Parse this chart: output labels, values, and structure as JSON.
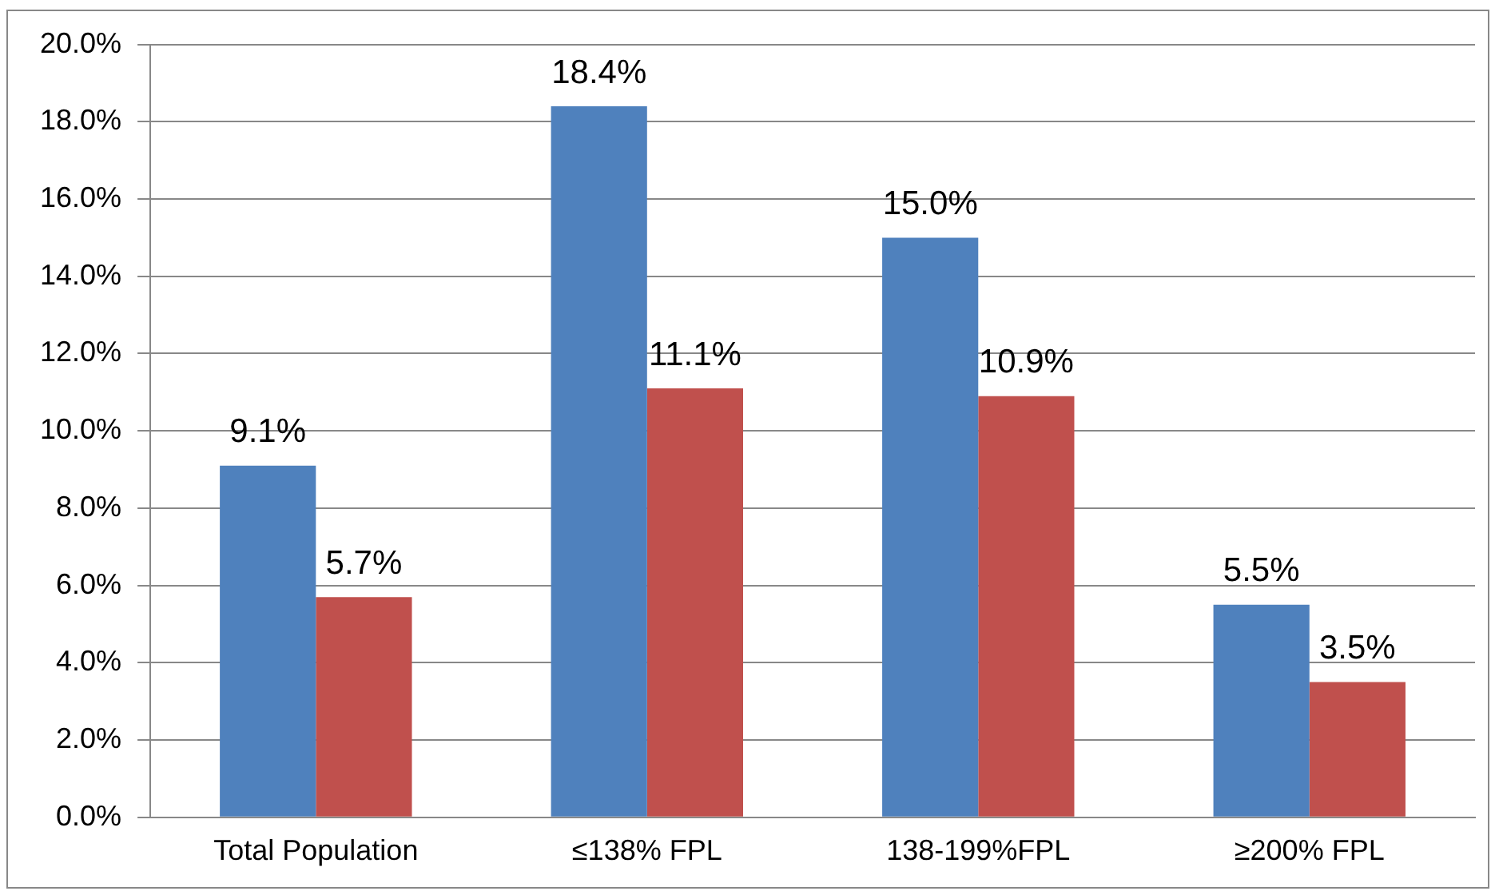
{
  "chart_data": {
    "type": "bar",
    "categories": [
      "Total Population",
      "≤138% FPL",
      "138-199%FPL",
      "≥200% FPL"
    ],
    "series": [
      {
        "color": "#4f81bd",
        "values": [
          9.1,
          18.4,
          15.0,
          5.5
        ],
        "value_labels": [
          "9.1%",
          "18.4%",
          "15.0%",
          "5.5%"
        ]
      },
      {
        "color": "#c0504d",
        "values": [
          5.7,
          11.1,
          10.9,
          3.5
        ],
        "value_labels": [
          "5.7%",
          "11.1%",
          "10.9%",
          "3.5%"
        ]
      }
    ],
    "ylim": [
      0,
      20
    ],
    "yticks": [
      {
        "value": 0,
        "label": "0.0%"
      },
      {
        "value": 2,
        "label": "2.0%"
      },
      {
        "value": 4,
        "label": "4.0%"
      },
      {
        "value": 6,
        "label": "6.0%"
      },
      {
        "value": 8,
        "label": "8.0%"
      },
      {
        "value": 10,
        "label": "10.0%"
      },
      {
        "value": 12,
        "label": "12.0%"
      },
      {
        "value": 14,
        "label": "14.0%"
      },
      {
        "value": 16,
        "label": "16.0%"
      },
      {
        "value": 18,
        "label": "18.0%"
      },
      {
        "value": 20,
        "label": "20.0%"
      }
    ],
    "grid": "y",
    "legend": false
  }
}
